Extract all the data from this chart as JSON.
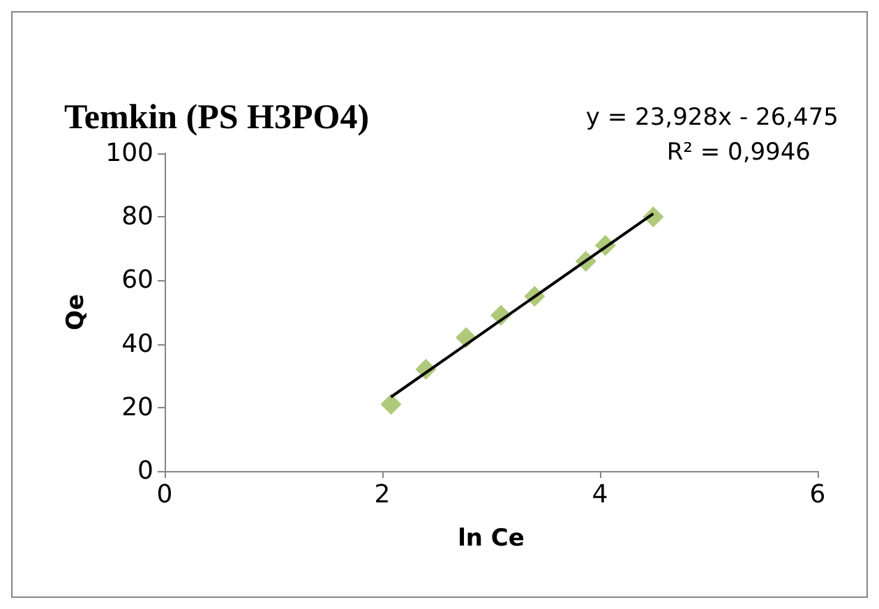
{
  "chart_data": {
    "type": "scatter",
    "title": "Temkin (PS H3PO4)",
    "xlabel": "ln Ce",
    "ylabel": "Qe",
    "grid": false,
    "xlim": [
      0,
      6
    ],
    "xticks": [
      0,
      2,
      4,
      6
    ],
    "ylim": [
      0,
      100
    ],
    "yticks": [
      0,
      20,
      40,
      60,
      80,
      100
    ],
    "annotations": [
      "y = 23,928x - 26,475",
      "R² = 0,9946"
    ],
    "series": [
      {
        "marker": "diamond",
        "color": "#9bbb59",
        "x": [
          2.08,
          2.4,
          2.77,
          3.09,
          3.4,
          3.87,
          4.05,
          4.49
        ],
        "values": [
          21,
          32,
          42,
          49,
          55,
          66,
          71,
          80
        ]
      },
      {
        "type": "line",
        "marker": "none",
        "color": "#000000",
        "x": [
          2.08,
          4.49
        ],
        "values": [
          23.3,
          81.0
        ],
        "line_style": "solid"
      }
    ]
  }
}
